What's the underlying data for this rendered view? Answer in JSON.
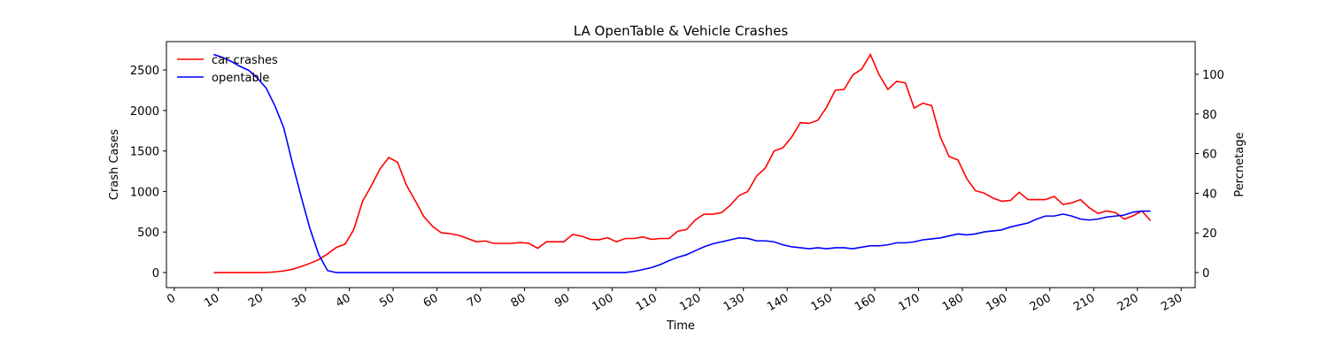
{
  "chart_data": {
    "type": "line",
    "title": "LA OpenTable & Vehicle Crashes",
    "x_label": "Time",
    "y_label": "Crash Cases",
    "y2_label": "Percnetage",
    "x": [
      9,
      11,
      13,
      15,
      17,
      19,
      21,
      23,
      25,
      27,
      29,
      31,
      33,
      35,
      37,
      39,
      41,
      43,
      45,
      47,
      49,
      51,
      53,
      55,
      57,
      59,
      61,
      63,
      65,
      67,
      69,
      71,
      73,
      75,
      77,
      79,
      81,
      83,
      85,
      87,
      89,
      91,
      93,
      95,
      97,
      99,
      101,
      103,
      105,
      107,
      109,
      111,
      113,
      115,
      117,
      119,
      121,
      123,
      125,
      127,
      129,
      131,
      133,
      135,
      137,
      139,
      141,
      143,
      145,
      147,
      149,
      151,
      153,
      155,
      157,
      159,
      161,
      163,
      165,
      167,
      169,
      171,
      173,
      175,
      177,
      179,
      181,
      183,
      185,
      187,
      189,
      191,
      193,
      195,
      197,
      199,
      201,
      203,
      205,
      207,
      209,
      211,
      213,
      215,
      217,
      219,
      221,
      223
    ],
    "series": [
      {
        "name": "car crashes",
        "color": "#ff0000",
        "values": [
          0,
          0,
          0,
          0,
          0,
          0,
          1,
          8,
          20,
          40,
          75,
          115,
          160,
          230,
          310,
          350,
          530,
          880,
          1070,
          1280,
          1420,
          1360,
          1080,
          890,
          690,
          570,
          490,
          480,
          460,
          420,
          380,
          390,
          360,
          360,
          360,
          370,
          360,
          300,
          380,
          380,
          380,
          470,
          450,
          410,
          405,
          430,
          380,
          420,
          420,
          440,
          410,
          420,
          420,
          510,
          530,
          650,
          720,
          720,
          740,
          830,
          950,
          1000,
          1190,
          1290,
          1500,
          1540,
          1670,
          1850,
          1840,
          1880,
          2040,
          2250,
          2260,
          2440,
          2510,
          2690,
          2440,
          2260,
          2360,
          2340,
          2030,
          2090,
          2060,
          1670,
          1430,
          1390,
          1160,
          1010,
          980,
          920,
          880,
          890,
          990,
          900,
          900,
          900,
          940,
          840,
          860,
          900,
          800,
          730,
          760,
          740,
          660,
          700,
          760,
          640
        ]
      },
      {
        "name": "opentable",
        "color": "#0000ff",
        "axis": "y2",
        "values": [
          110,
          108.5,
          106.5,
          104,
          102,
          98,
          93,
          84,
          73,
          55,
          38,
          22,
          9,
          1,
          0,
          0,
          0,
          0,
          0,
          0,
          0,
          0,
          0,
          0,
          0,
          0,
          0,
          0,
          0,
          0,
          0,
          0,
          0,
          0,
          0,
          0,
          0,
          0,
          0,
          0,
          0,
          0,
          0,
          0,
          0,
          0,
          0,
          0,
          0.6,
          1.5,
          2.5,
          4,
          6,
          7.7,
          9,
          11,
          13,
          14.5,
          15.5,
          16.5,
          17.5,
          17.2,
          16,
          16,
          15.5,
          14,
          13,
          12.5,
          12,
          12.5,
          12,
          12.5,
          12.5,
          12,
          12.8,
          13.5,
          13.5,
          14,
          15,
          15,
          15.5,
          16.5,
          17,
          17.5,
          18.5,
          19.5,
          19,
          19.5,
          20.5,
          21,
          21.5,
          23,
          24,
          25,
          27,
          28.5,
          28.5,
          29.5,
          28.5,
          27,
          26.5,
          27,
          28,
          28.5,
          29,
          30.5,
          31,
          31
        ]
      }
    ],
    "xlim": [
      -1.8,
      233.2
    ],
    "xticks": [
      0,
      10,
      20,
      30,
      40,
      50,
      60,
      70,
      80,
      90,
      100,
      110,
      120,
      130,
      140,
      150,
      160,
      170,
      180,
      190,
      200,
      210,
      220,
      230
    ],
    "ylim": [
      -186,
      2850
    ],
    "yticks": [
      0,
      500,
      1000,
      1500,
      2000,
      2500
    ],
    "y2lim": [
      -7.6,
      116.5
    ],
    "y2ticks": [
      0,
      20,
      40,
      60,
      80,
      100
    ],
    "legend": "upper left",
    "grid": false
  }
}
